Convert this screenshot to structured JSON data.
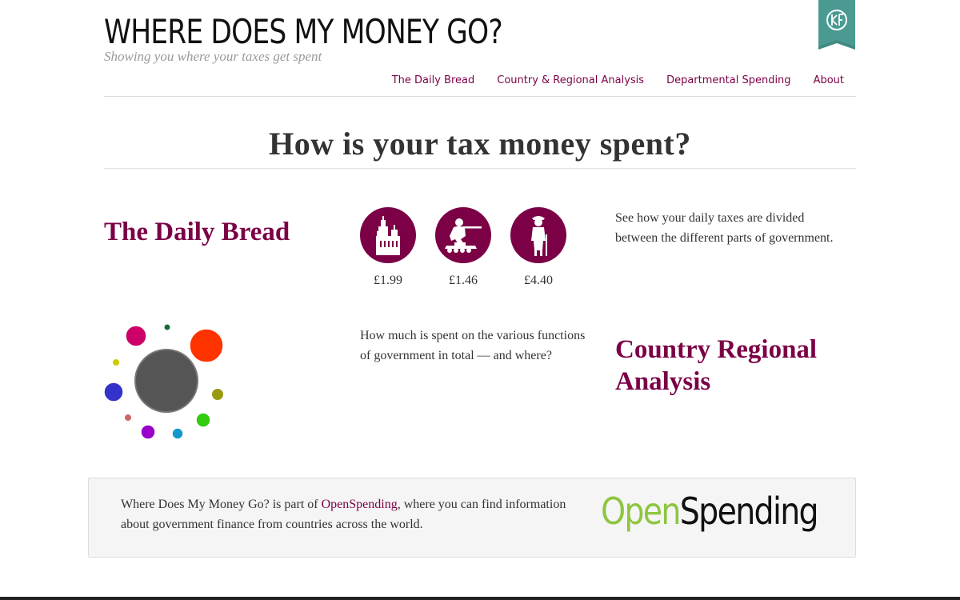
{
  "header": {
    "site_title": "WHERE DOES MY MONEY GO?",
    "tagline": "Showing you where your taxes get spent",
    "logo_icon": "okf-ribbon-icon",
    "ribbon_color": "#3f8b84"
  },
  "nav": {
    "items": [
      {
        "label": "The Daily Bread"
      },
      {
        "label": "Country & Regional Analysis"
      },
      {
        "label": "Departmental Spending"
      },
      {
        "label": "About"
      }
    ]
  },
  "main": {
    "heading": "How is your tax money spent?",
    "accent_color": "#7b0046",
    "daily_bread": {
      "title": "The Daily Bread",
      "description": "See how your daily taxes are divided between the different parts of government.",
      "items": [
        {
          "icon": "parliament-icon",
          "value": "£1.99"
        },
        {
          "icon": "soldier-icon",
          "value": "£1.46"
        },
        {
          "icon": "elderly-person-icon",
          "value": "£4.40"
        }
      ]
    },
    "regional": {
      "title": "Country Regional Analysis",
      "description": "How much is spent on the various functions of government in total — and where?",
      "bubble_colors": [
        "#cc0066",
        "#1a6b3a",
        "#ff3300",
        "#cccc00",
        "#999911",
        "#3333cc",
        "#33cc11",
        "#cc6666",
        "#9900cc",
        "#1199cc",
        "#555555"
      ]
    }
  },
  "footer": {
    "text_before": "Where Does My Money Go? is part of ",
    "link_label": "OpenSpending",
    "text_after": ", where you can find information about government finance from countries across the world.",
    "logo_open": "Open",
    "logo_spending": "Spending"
  }
}
